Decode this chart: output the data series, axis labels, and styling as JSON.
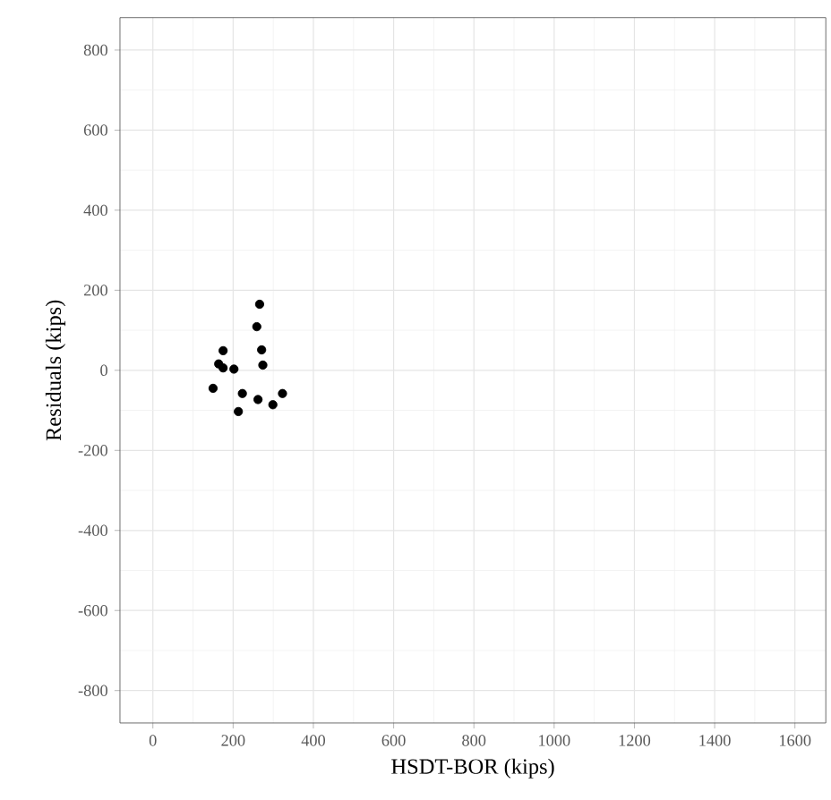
{
  "chart_data": {
    "type": "scatter",
    "xlabel": "HSDT-BOR (kips)",
    "ylabel": "Residuals (kips)",
    "x": [
      150,
      164,
      175,
      175,
      202,
      213,
      223,
      259,
      266,
      271,
      274,
      262,
      299,
      323
    ],
    "values": [
      -45,
      16,
      49,
      6,
      3,
      -103,
      -58,
      109,
      165,
      51,
      13,
      -73,
      -86,
      -58
    ],
    "color": "#000000",
    "marker": "circle",
    "grid": true,
    "xlim": [
      -82,
      1677
    ],
    "ylim": [
      -881,
      881
    ],
    "xticks": [
      0,
      200,
      400,
      600,
      800,
      1000,
      1200,
      1400,
      1600
    ],
    "yticks": [
      -800,
      -600,
      -400,
      -200,
      0,
      200,
      400,
      600,
      800
    ]
  }
}
